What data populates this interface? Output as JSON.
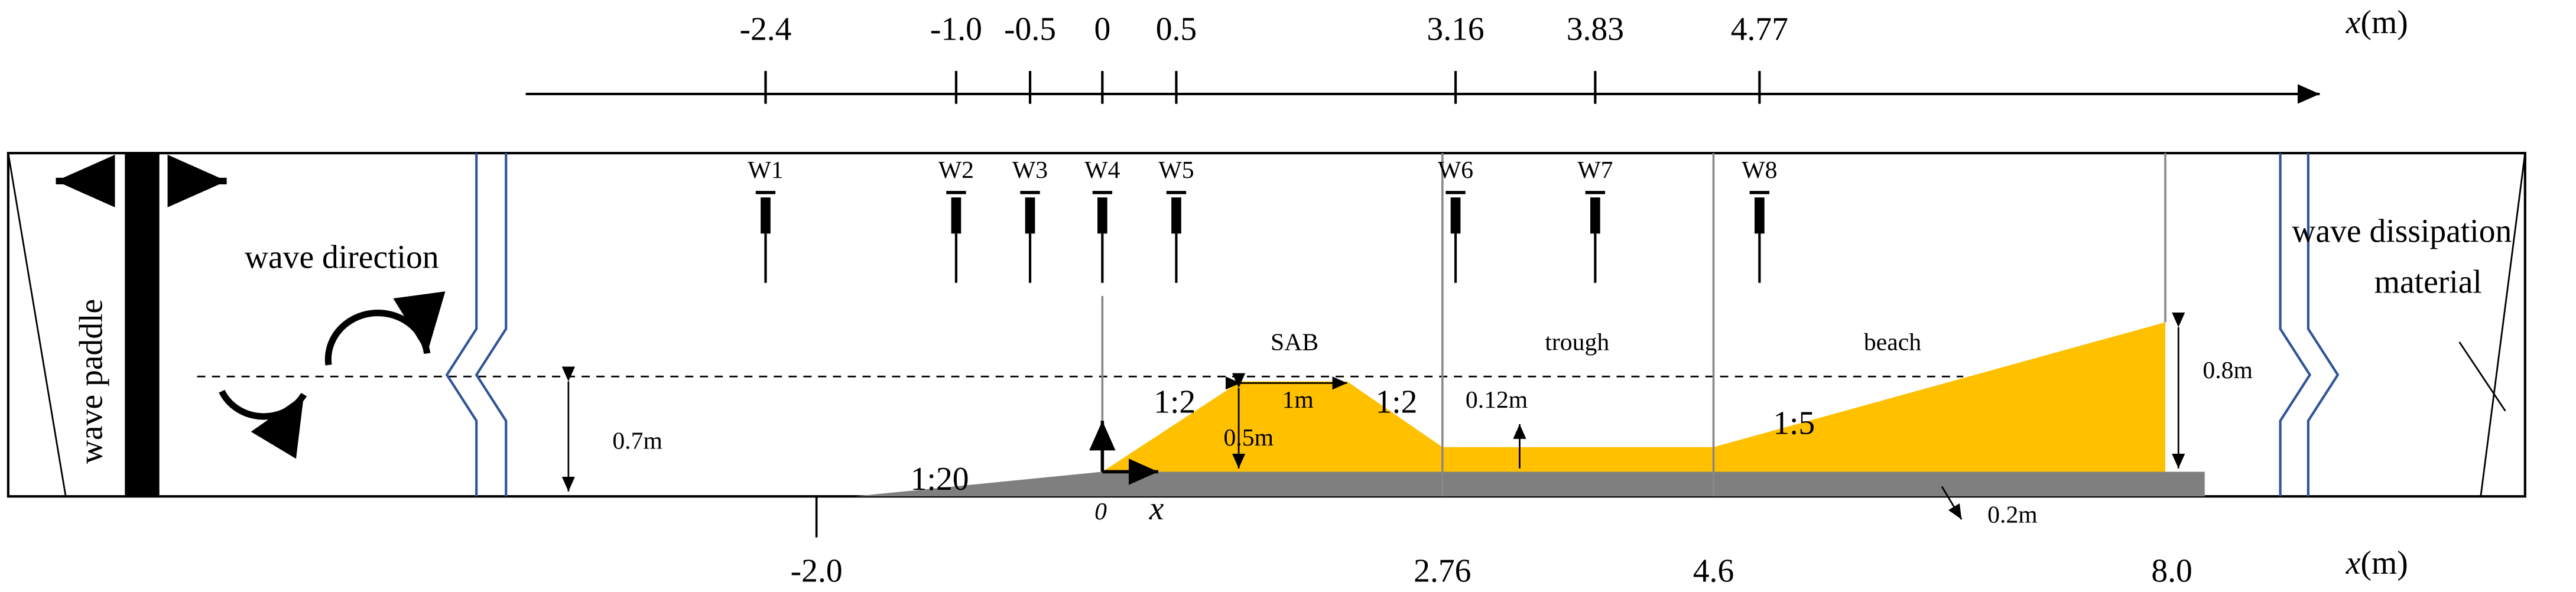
{
  "top_axis": {
    "unit_var": "x",
    "unit": "(m)",
    "ticks": [
      "-2.4",
      "-1.0",
      "-0.5",
      "0",
      "0.5",
      "3.16",
      "3.83",
      "4.77"
    ]
  },
  "bottom_axis": {
    "unit_var": "x",
    "unit": "(m)",
    "ticks": [
      "-2.0",
      "2.76",
      "4.6",
      "8.0"
    ]
  },
  "gauges": [
    "W1",
    "W2",
    "W3",
    "W4",
    "W5",
    "W6",
    "W7",
    "W8"
  ],
  "labels": {
    "paddle": "wave paddle",
    "direction": "wave direction",
    "dissipation_1": "wave dissipation",
    "dissipation_2": "material",
    "sab": "SAB",
    "trough": "trough",
    "beach": "beach",
    "slope_left": "1:2",
    "crest": "1m",
    "slope_right": "1:2",
    "trough_depth": "0.12m",
    "sab_height": "0.5m",
    "beach_slope": "1:5",
    "beach_height": "0.8m",
    "water_depth": "0.7m",
    "bed_slope": "1:20",
    "origin": "0",
    "origin_x": "x",
    "bed_thickness": "0.2m"
  }
}
